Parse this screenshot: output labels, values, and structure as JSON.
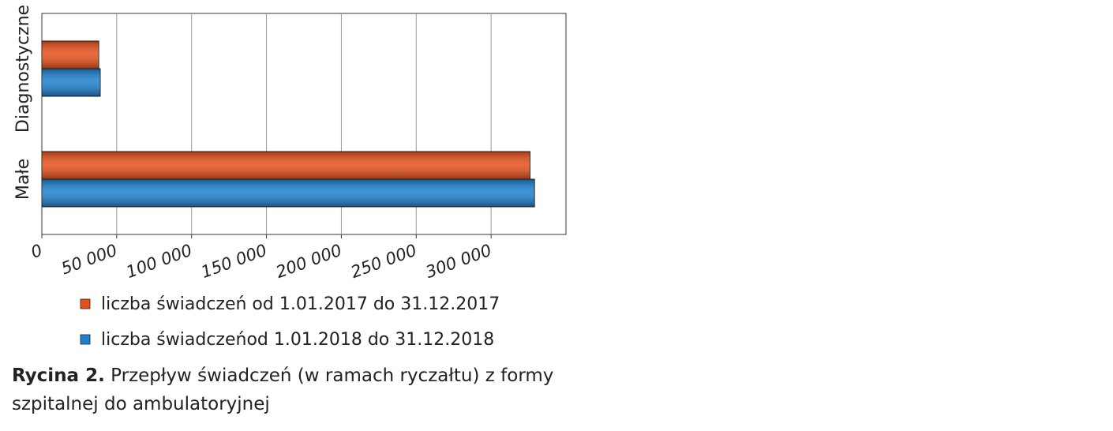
{
  "chart_data": {
    "type": "hbar",
    "categories": [
      "Diagnostyczne",
      "Małe"
    ],
    "series": [
      {
        "name": "liczba świadczeń od 1.01.2017 do 31.12.2017",
        "color": "#e8501a",
        "values": [
          38000,
          326000
        ]
      },
      {
        "name": "liczba świadczeńod 1.01.2018 do 31.12.2018",
        "color": "#1c80cf",
        "values": [
          39000,
          329000
        ]
      }
    ],
    "xlim": [
      0,
      350000
    ],
    "xticks": [
      0,
      {
        "value": 50000,
        "label": "50 000"
      },
      {
        "value": 100000,
        "label": "100 000"
      },
      {
        "value": 150000,
        "label": "150 000"
      },
      {
        "value": 200000,
        "label": "200 000"
      },
      {
        "value": 250000,
        "label": "250 000"
      },
      {
        "value": 300000,
        "label": "300 000"
      }
    ],
    "grid": true
  },
  "caption": {
    "label": "Rycina 2.",
    "text": "Przepływ świadczeń (w ramach ryczałtu) z formy szpitalnej do ambulatoryjnej"
  }
}
